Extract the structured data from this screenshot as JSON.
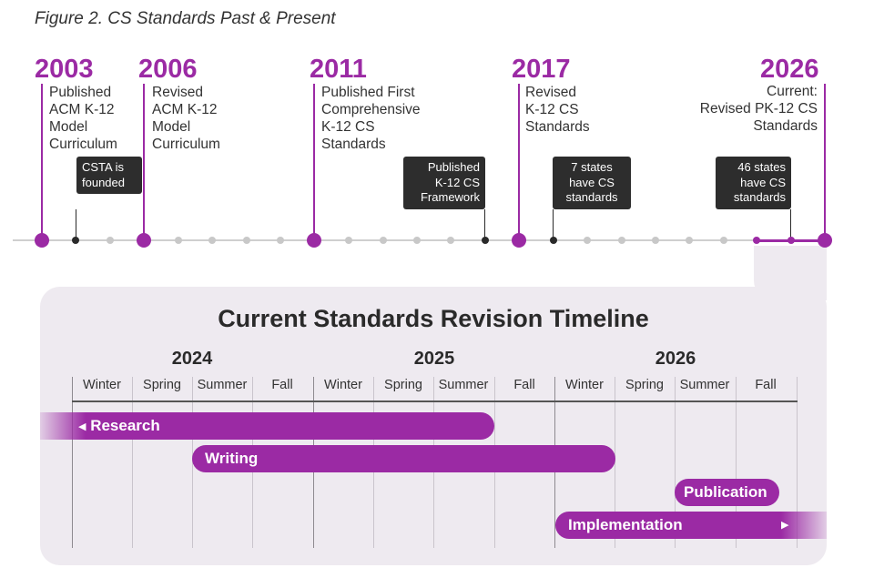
{
  "figure_title": "Figure 2. CS Standards Past & Present",
  "milestones": [
    {
      "year": "2003",
      "lines": [
        "Published",
        "ACM K-12",
        "Model",
        "Curriculum"
      ]
    },
    {
      "year": "2006",
      "lines": [
        "Revised",
        "ACM K-12",
        "Model",
        "Curriculum"
      ]
    },
    {
      "year": "2011",
      "lines": [
        "Published First",
        "Comprehensive",
        "K-12 CS",
        "Standards"
      ]
    },
    {
      "year": "2017",
      "lines": [
        "Revised",
        "K-12 CS",
        "Standards"
      ]
    },
    {
      "year": "2026",
      "lines": [
        "Current:",
        "Revised PK-12 CS",
        "Standards"
      ]
    }
  ],
  "events": [
    {
      "lines": [
        "CSTA is",
        "founded"
      ]
    },
    {
      "lines": [
        "Published",
        "K-12 CS",
        "Framework"
      ]
    },
    {
      "lines": [
        "7 states",
        "have CS",
        "standards"
      ]
    },
    {
      "lines": [
        "46 states",
        "have CS",
        "standards"
      ]
    }
  ],
  "revision": {
    "title": "Current Standards Revision Timeline",
    "years": [
      "2024",
      "2025",
      "2026"
    ],
    "seasons": [
      "Winter",
      "Spring",
      "Summer",
      "Fall"
    ],
    "phases": [
      {
        "label": "Research",
        "arrow": "◀",
        "start": "2024 Winter (before)",
        "end": "2025 Summer"
      },
      {
        "label": "Writing",
        "start": "2024 Summer",
        "end": "2026 Winter"
      },
      {
        "label": "Publication",
        "start": "2026 Summer",
        "end": "2026 Fall"
      },
      {
        "label": "Implementation",
        "arrow": "▶",
        "start": "2026 Winter",
        "end": "2026 Fall (after)"
      }
    ]
  },
  "colors": {
    "accent": "#9b2aa4",
    "dark_box": "#2d2d2d",
    "panel": "#eeeaf0"
  }
}
